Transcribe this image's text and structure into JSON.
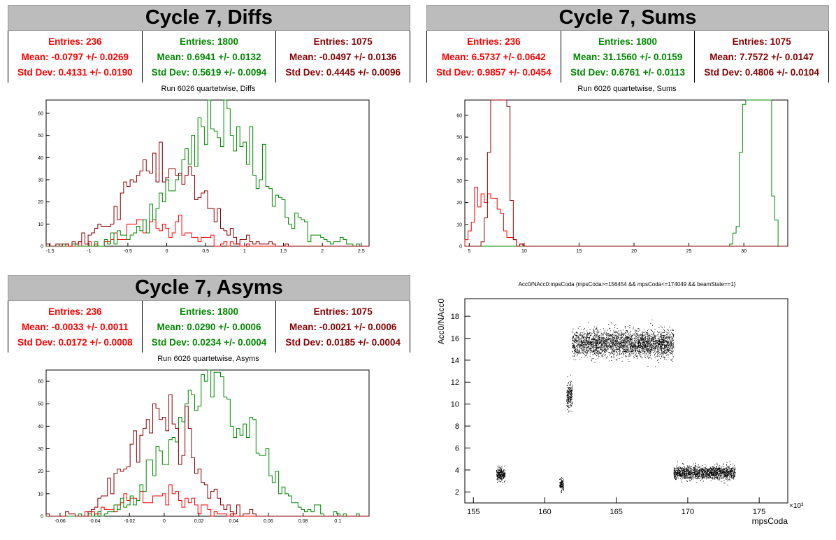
{
  "panels": {
    "diffs": {
      "title": "Cycle 7, Diffs",
      "subtitle": "Run 6026 quartetwise, Diffs",
      "stats": [
        {
          "entries": "Entries: 236",
          "mean": "Mean: -0.0797 +/- 0.0269",
          "std": "Std Dev: 0.4131 +/- 0.0190",
          "color": "#ff0000"
        },
        {
          "entries": "Entries: 1800",
          "mean": "Mean: 0.6941 +/- 0.0132",
          "std": "Std Dev: 0.5619 +/- 0.0094",
          "color": "#008800"
        },
        {
          "entries": "Entries: 1075",
          "mean": "Mean: -0.0497 +/- 0.0136",
          "std": "Std Dev: 0.4445 +/- 0.0096",
          "color": "#880000"
        }
      ]
    },
    "sums": {
      "title": "Cycle 7, Sums",
      "subtitle": "Run 6026 quartetwise, Sums",
      "stats": [
        {
          "entries": "Entries: 236",
          "mean": "Mean: 6.5737 +/- 0.0642",
          "std": "Std Dev: 0.9857 +/- 0.0454",
          "color": "#ff0000"
        },
        {
          "entries": "Entries: 1800",
          "mean": "Mean: 31.1560 +/- 0.0159",
          "std": "Std Dev: 0.6761 +/- 0.0113",
          "color": "#008800"
        },
        {
          "entries": "Entries: 1075",
          "mean": "Mean: 7.7572 +/- 0.0147",
          "std": "Std Dev: 0.4806 +/- 0.0104",
          "color": "#880000"
        }
      ]
    },
    "asyms": {
      "title": "Cycle 7, Asyms",
      "subtitle": "Run 6026 quartetwise, Asyms",
      "stats": [
        {
          "entries": "Entries: 236",
          "mean": "Mean: -0.0033 +/- 0.0011",
          "std": "Std Dev: 0.0172 +/- 0.0008",
          "color": "#ff0000"
        },
        {
          "entries": "Entries: 1800",
          "mean": "Mean: 0.0290 +/- 0.0006",
          "std": "Std Dev: 0.0234 +/- 0.0004",
          "color": "#008800"
        },
        {
          "entries": "Entries: 1075",
          "mean": "Mean: -0.0021 +/- 0.0006",
          "std": "Std Dev: 0.0185 +/- 0.0004",
          "color": "#880000"
        }
      ]
    },
    "scatter": {
      "title": "Acc0/NAcc0:mpsCoda {mpsCoda>=156454 && mpsCoda<=174049 && beamState==1}"
    }
  },
  "chart_data": [
    {
      "type": "histogram",
      "id": "diffs",
      "xlim": [
        -1.55,
        2.6
      ],
      "ylim": [
        0,
        66
      ],
      "xticks": [
        -1.5,
        -1,
        -0.5,
        0,
        0.5,
        1,
        1.5,
        2,
        2.5
      ],
      "xticklabels": [
        "-1.5",
        "-1",
        "-0.5",
        "0",
        "0.5",
        "1",
        "1.5",
        "2",
        "2.5"
      ],
      "yticks": [
        0,
        10,
        20,
        30,
        40,
        50,
        60
      ],
      "yticklabels": [
        "0",
        "10",
        "20",
        "30",
        "40",
        "50",
        "60"
      ],
      "series": [
        {
          "color": "#ff0000",
          "mean": -0.0797,
          "std": 0.4131,
          "entries": 236
        },
        {
          "color": "#008800",
          "mean": 0.6941,
          "std": 0.5619,
          "entries": 1800
        },
        {
          "color": "#880000",
          "mean": -0.0497,
          "std": 0.4445,
          "entries": 1075
        }
      ]
    },
    {
      "type": "histogram",
      "id": "sums",
      "xlim": [
        4.6,
        34
      ],
      "ylim": [
        0,
        67
      ],
      "xticks": [
        5,
        10,
        15,
        20,
        25,
        30
      ],
      "xticklabels": [
        "5",
        "10",
        "15",
        "20",
        "25",
        "30"
      ],
      "yticks": [
        0,
        10,
        20,
        30,
        40,
        50,
        60
      ],
      "yticklabels": [
        "0",
        "10",
        "20",
        "30",
        "40",
        "50",
        "60"
      ],
      "series": [
        {
          "color": "#ff0000",
          "mean": 6.5737,
          "std": 0.9857,
          "entries": 236
        },
        {
          "color": "#008800",
          "mean": 31.156,
          "std": 0.6761,
          "entries": 1800
        },
        {
          "color": "#880000",
          "mean": 7.7572,
          "std": 0.4806,
          "entries": 1075
        }
      ]
    },
    {
      "type": "histogram",
      "id": "asyms",
      "xlim": [
        -0.068,
        0.118
      ],
      "ylim": [
        0,
        65
      ],
      "xticks": [
        -0.06,
        -0.04,
        -0.02,
        0,
        0.02,
        0.04,
        0.06,
        0.08,
        0.1
      ],
      "xticklabels": [
        "-0.06",
        "-0.04",
        "-0.02",
        "0",
        "0.02",
        "0.04",
        "0.06",
        "0.08",
        "0.1"
      ],
      "yticks": [
        0,
        10,
        20,
        30,
        40,
        50,
        60
      ],
      "yticklabels": [
        "0",
        "10",
        "20",
        "30",
        "40",
        "50",
        "60"
      ],
      "series": [
        {
          "color": "#ff0000",
          "mean": -0.0033,
          "std": 0.0172,
          "entries": 236
        },
        {
          "color": "#008800",
          "mean": 0.029,
          "std": 0.0234,
          "entries": 1800
        },
        {
          "color": "#880000",
          "mean": -0.0021,
          "std": 0.0185,
          "entries": 1075
        }
      ]
    },
    {
      "type": "scatter",
      "id": "scatter",
      "xlabel": "mpsCoda",
      "ylabel": "Acc0/NAcc0",
      "xexponent": "×10³",
      "xlim": [
        154.4,
        177
      ],
      "ylim": [
        1,
        19.6
      ],
      "xticks": [
        155,
        160,
        165,
        170,
        175
      ],
      "xticklabels": [
        "155",
        "160",
        "165",
        "170",
        "175"
      ],
      "yticks": [
        2,
        4,
        6,
        8,
        10,
        12,
        14,
        16,
        18
      ],
      "yticklabels": [
        "2",
        "4",
        "6",
        "8",
        "10",
        "12",
        "14",
        "16",
        "18"
      ],
      "clusters": [
        {
          "x": [
            156.6,
            157.2
          ],
          "ymean": 3.6,
          "ysd": 0.3,
          "n": 250
        },
        {
          "x": [
            161.0,
            161.3
          ],
          "ymean": 2.7,
          "ysd": 0.3,
          "n": 120
        },
        {
          "x": [
            161.5,
            161.9
          ],
          "ymean": 10.8,
          "ysd": 0.6,
          "n": 220
        },
        {
          "x": [
            161.9,
            169.0
          ],
          "ymean": 15.5,
          "ysd": 0.6,
          "n": 2800
        },
        {
          "x": [
            169.0,
            173.3
          ],
          "ymean": 3.75,
          "ysd": 0.3,
          "n": 1500
        }
      ]
    }
  ]
}
